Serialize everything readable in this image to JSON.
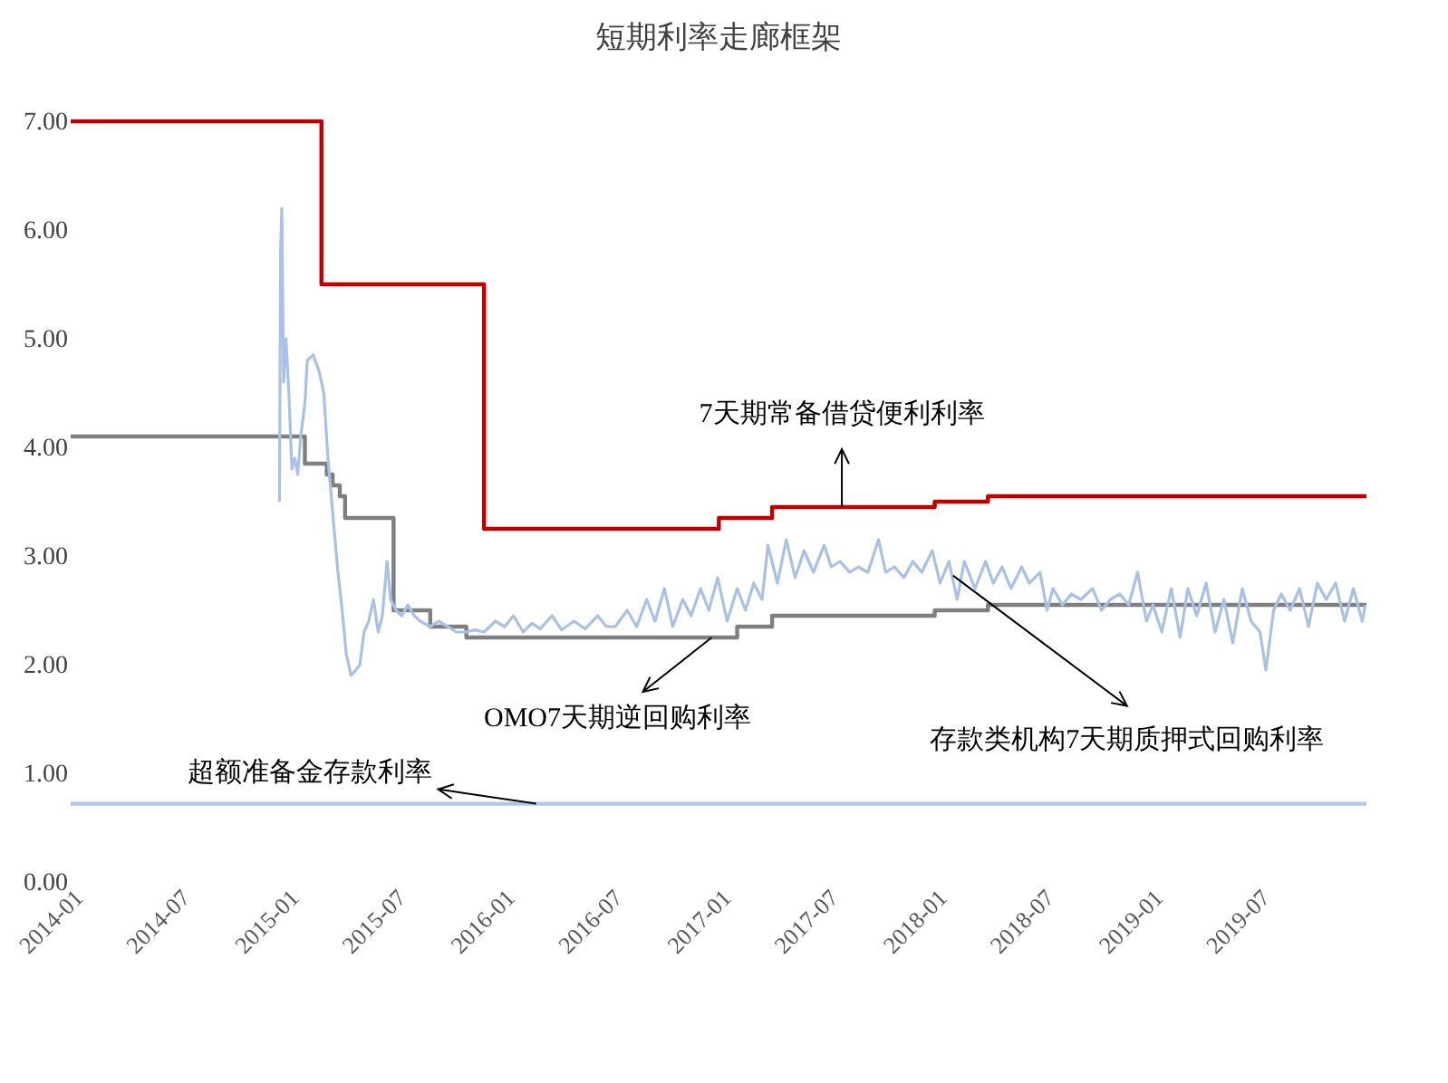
{
  "chart_data": {
    "type": "line",
    "title": "短期利率走廊框架",
    "xlim": [
      "2014-01",
      "2020-01"
    ],
    "xticks": [
      "2014-01",
      "2014-07",
      "2015-01",
      "2015-07",
      "2016-01",
      "2016-07",
      "2017-01",
      "2017-07",
      "2018-01",
      "2018-07",
      "2019-01",
      "2019-07"
    ],
    "ylim": [
      0,
      7
    ],
    "yticks": [
      {
        "value": 0,
        "label": "0.00"
      },
      {
        "value": 1,
        "label": "1.00"
      },
      {
        "value": 2,
        "label": "2.00"
      },
      {
        "value": 3,
        "label": "3.00"
      },
      {
        "value": 4,
        "label": "4.00"
      },
      {
        "value": 5,
        "label": "5.00"
      },
      {
        "value": 6,
        "label": "6.00"
      },
      {
        "value": 7,
        "label": "7.00"
      }
    ],
    "grid": false,
    "line_style": "solid",
    "marker": "none",
    "series": [
      {
        "type": "step",
        "color": "#c00000",
        "x": [
          "2014-01",
          "2015-03",
          "2015-12",
          "2017-01",
          "2017-04",
          "2018-01",
          "2018-04",
          "2020-01"
        ],
        "values": [
          7.0,
          5.5,
          3.25,
          3.35,
          3.45,
          3.5,
          3.55,
          3.55
        ]
      },
      {
        "type": "step",
        "color": "#7f7f7f",
        "x": [
          "2014-01",
          "2015-02",
          "2015-03-10",
          "2015-03-20",
          "2015-04-01",
          "2015-04-10",
          "2015-07",
          "2015-09",
          "2015-11",
          "2017-02",
          "2017-04",
          "2018-01",
          "2018-04",
          "2020-01"
        ],
        "values": [
          4.1,
          3.85,
          3.75,
          3.65,
          3.55,
          3.35,
          2.5,
          2.35,
          2.25,
          2.35,
          2.45,
          2.5,
          2.55,
          2.55
        ]
      },
      {
        "type": "step",
        "color": "#b4c7e7",
        "x": [
          "2014-01",
          "2020-01"
        ],
        "values": [
          0.72,
          0.72
        ]
      },
      {
        "color": "#a9c1e6",
        "x": [
          "2014-12-20",
          "2014-12-22",
          "2014-12-24",
          "2014-12-27",
          "2014-12-31",
          "2015-01-05",
          "2015-01-10",
          "2015-01-15",
          "2015-01-20",
          "2015-01-25",
          "2015-02-01",
          "2015-02-05",
          "2015-02-15",
          "2015-02-25",
          "2015-03-05",
          "2015-03-12",
          "2015-03-20",
          "2015-03-28",
          "2015-04-05",
          "2015-04-12",
          "2015-04-20",
          "2015-04-28",
          "2015-05-05",
          "2015-05-12",
          "2015-05-20",
          "2015-05-28",
          "2015-06-05",
          "2015-06-12",
          "2015-06-20",
          "2015-06-26",
          "2015-07-05",
          "2015-07-15",
          "2015-07-25",
          "2015-08-05",
          "2015-08-15",
          "2015-09-01",
          "2015-09-15",
          "2015-10-01",
          "2015-10-15",
          "2015-11-01",
          "2015-11-15",
          "2015-12-01",
          "2015-12-20",
          "2016-01-05",
          "2016-01-20",
          "2016-02-05",
          "2016-02-20",
          "2016-03-05",
          "2016-03-25",
          "2016-04-10",
          "2016-05-01",
          "2016-05-20",
          "2016-06-10",
          "2016-06-25",
          "2016-07-10",
          "2016-07-30",
          "2016-08-15",
          "2016-09-01",
          "2016-09-15",
          "2016-10-01",
          "2016-10-15",
          "2016-11-01",
          "2016-11-15",
          "2016-12-01",
          "2016-12-15",
          "2016-12-30",
          "2017-01-15",
          "2017-02-01",
          "2017-02-15",
          "2017-03-01",
          "2017-03-15",
          "2017-03-25",
          "2017-04-10",
          "2017-04-25",
          "2017-05-10",
          "2017-05-25",
          "2017-06-10",
          "2017-06-28",
          "2017-07-10",
          "2017-07-25",
          "2017-08-10",
          "2017-08-25",
          "2017-09-10",
          "2017-09-28",
          "2017-10-10",
          "2017-10-25",
          "2017-11-10",
          "2017-11-25",
          "2017-12-10",
          "2017-12-28",
          "2018-01-10",
          "2018-01-25",
          "2018-02-08",
          "2018-02-20",
          "2018-03-10",
          "2018-03-28",
          "2018-04-10",
          "2018-04-25",
          "2018-05-10",
          "2018-05-28",
          "2018-06-10",
          "2018-06-28",
          "2018-07-10",
          "2018-07-20",
          "2018-08-05",
          "2018-08-20",
          "2018-09-05",
          "2018-09-25",
          "2018-10-10",
          "2018-10-25",
          "2018-11-10",
          "2018-11-25",
          "2018-12-10",
          "2018-12-25",
          "2019-01-05",
          "2019-01-20",
          "2019-02-05",
          "2019-02-20",
          "2019-03-05",
          "2019-03-20",
          "2019-04-05",
          "2019-04-20",
          "2019-05-05",
          "2019-05-20",
          "2019-06-05",
          "2019-06-20",
          "2019-07-05",
          "2019-07-15",
          "2019-07-28",
          "2019-08-10",
          "2019-08-25",
          "2019-09-10",
          "2019-09-25",
          "2019-10-10",
          "2019-10-25",
          "2019-11-10",
          "2019-11-25",
          "2019-12-10",
          "2019-12-25",
          "2019-12-30"
        ],
        "values": [
          3.5,
          5.8,
          6.2,
          4.6,
          5.0,
          4.5,
          3.8,
          3.9,
          3.75,
          4.1,
          4.4,
          4.8,
          4.85,
          4.7,
          4.5,
          3.9,
          3.4,
          2.9,
          2.5,
          2.1,
          1.9,
          1.95,
          2.0,
          2.3,
          2.4,
          2.6,
          2.3,
          2.45,
          2.95,
          2.6,
          2.5,
          2.45,
          2.55,
          2.45,
          2.4,
          2.35,
          2.4,
          2.35,
          2.3,
          2.3,
          2.32,
          2.3,
          2.4,
          2.35,
          2.45,
          2.3,
          2.38,
          2.33,
          2.45,
          2.32,
          2.4,
          2.33,
          2.45,
          2.35,
          2.35,
          2.5,
          2.35,
          2.6,
          2.4,
          2.7,
          2.35,
          2.6,
          2.45,
          2.7,
          2.5,
          2.8,
          2.4,
          2.7,
          2.5,
          2.75,
          2.6,
          3.1,
          2.75,
          3.15,
          2.8,
          3.05,
          2.85,
          3.1,
          2.9,
          2.95,
          2.85,
          2.9,
          2.85,
          3.15,
          2.85,
          2.9,
          2.8,
          2.95,
          2.85,
          3.05,
          2.75,
          2.95,
          2.6,
          2.95,
          2.7,
          2.95,
          2.75,
          2.9,
          2.7,
          2.9,
          2.75,
          2.85,
          2.5,
          2.7,
          2.55,
          2.65,
          2.6,
          2.7,
          2.5,
          2.6,
          2.65,
          2.55,
          2.85,
          2.4,
          2.55,
          2.3,
          2.7,
          2.25,
          2.7,
          2.45,
          2.75,
          2.3,
          2.6,
          2.2,
          2.7,
          2.4,
          2.3,
          1.95,
          2.5,
          2.65,
          2.5,
          2.7,
          2.35,
          2.75,
          2.6,
          2.75,
          2.4,
          2.7,
          2.4,
          2.55
        ]
      }
    ],
    "annotations": [
      {
        "text": "7天期常备借贷便利利率",
        "x": "2017-07-28",
        "y": 3.45
      },
      {
        "text": "OMO7天期逆回购利率",
        "x": "2016-12-20",
        "y": 2.25
      },
      {
        "text": "存款类机构7天期质押式回购利率",
        "x": "2018-02-01",
        "y": 2.82
      },
      {
        "text": "超额准备金存款利率",
        "x": "2016-02-27",
        "y": 0.72
      }
    ]
  }
}
